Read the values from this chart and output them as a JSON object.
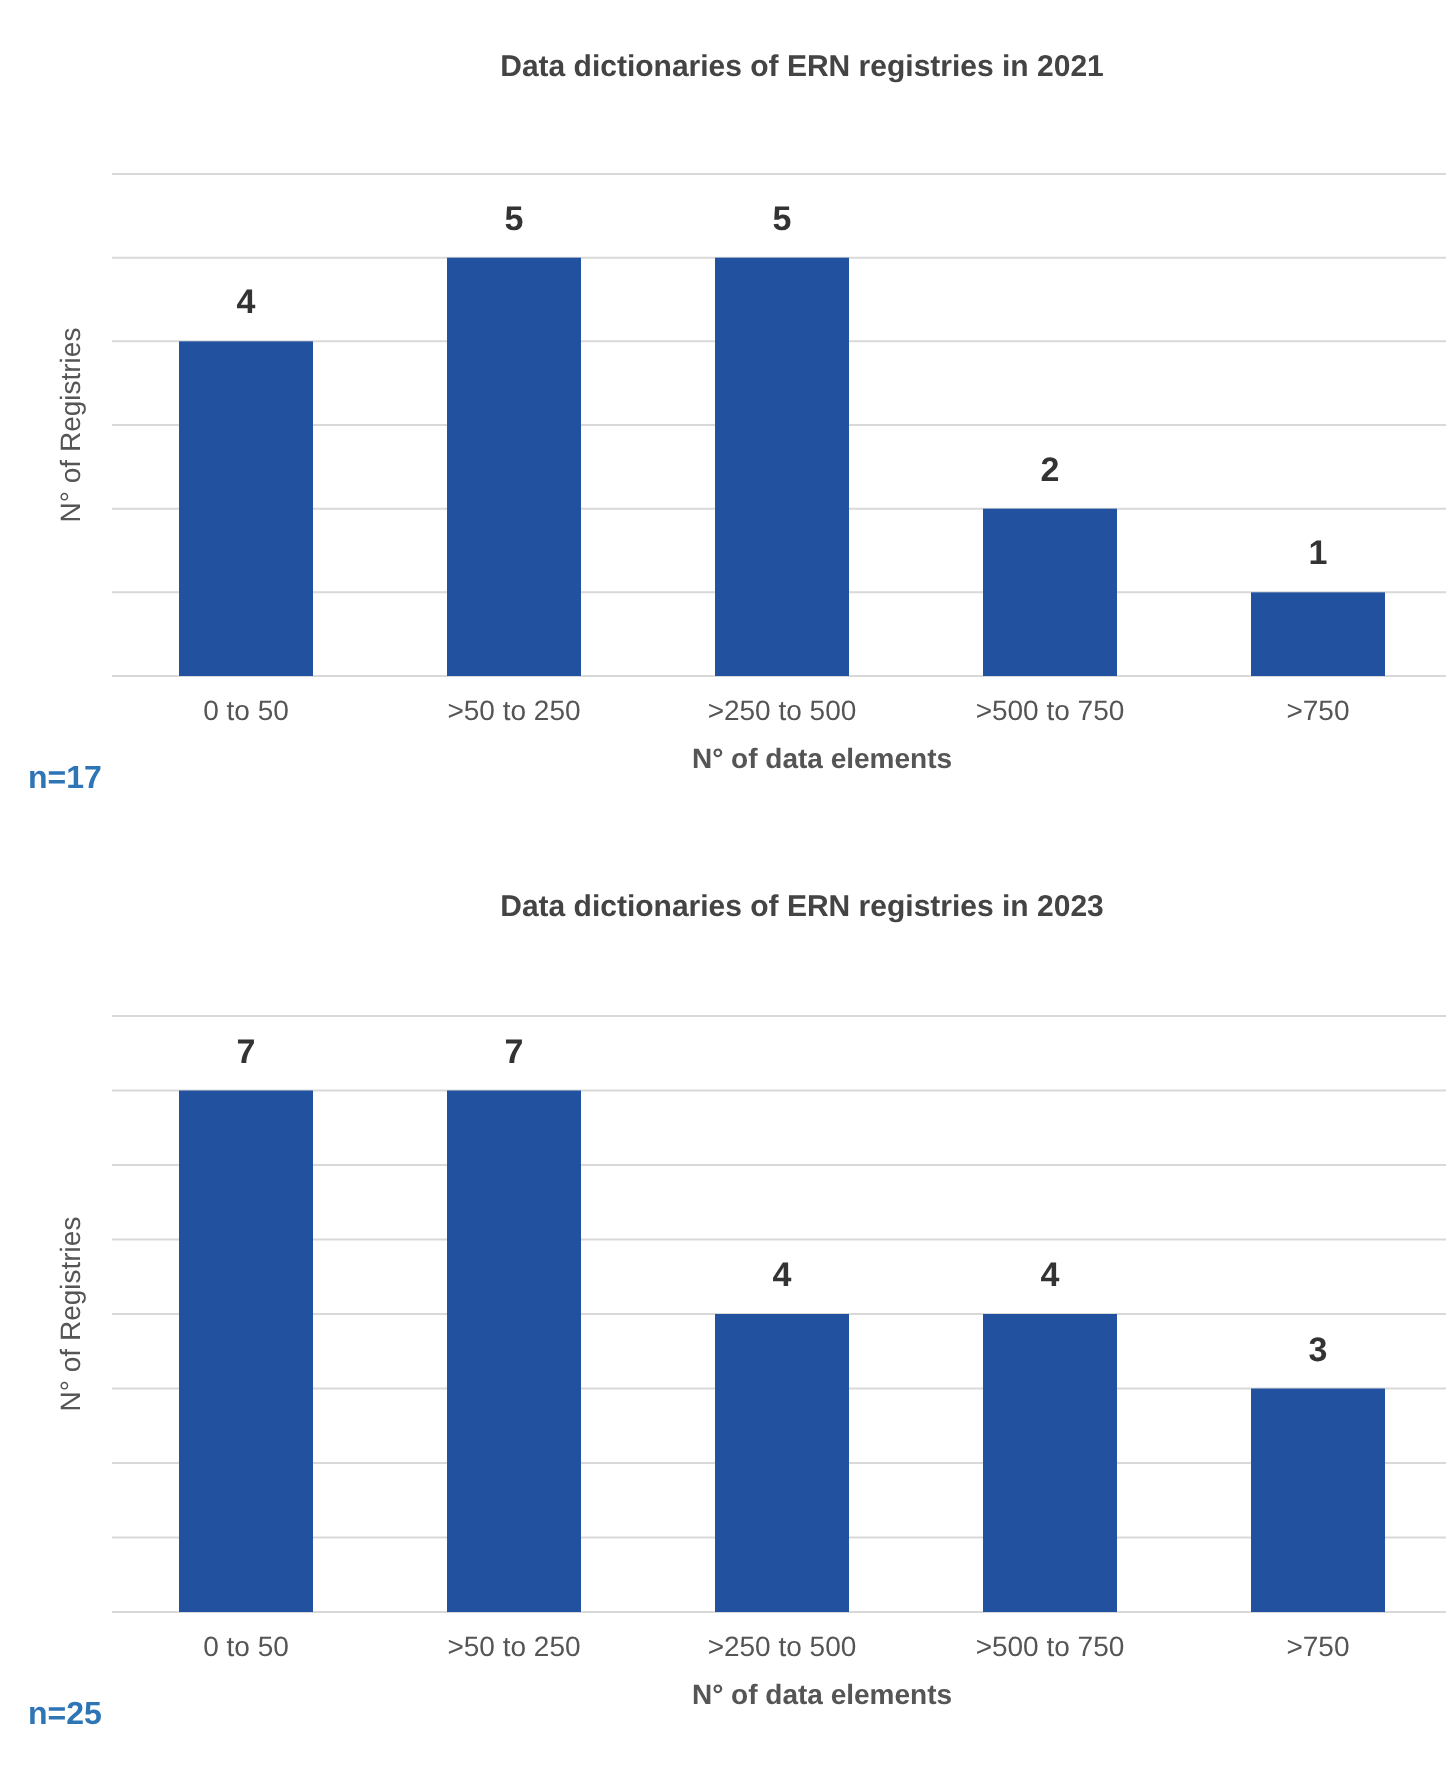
{
  "chart_data": [
    {
      "type": "bar",
      "title": "Data dictionaries of ERN registries in 2021",
      "xlabel": "N° of data elements",
      "ylabel": "N° of Registries",
      "categories": [
        "0  to 50",
        ">50 to 250",
        ">250 to 500",
        ">500 to 750",
        ">750"
      ],
      "values": [
        4,
        5,
        5,
        2,
        1
      ],
      "color": "#2251a0",
      "ylim": [
        0,
        6
      ],
      "yticks": [
        {
          "value": 0,
          "label": null
        },
        {
          "value": 1,
          "label": null
        },
        {
          "value": 2,
          "label": null
        },
        {
          "value": 3,
          "label": null
        },
        {
          "value": 4,
          "label": null
        },
        {
          "value": 5,
          "label": null
        },
        {
          "value": 6,
          "label": null
        }
      ],
      "grid": "y",
      "tick_labels": "x",
      "data_labels": true,
      "annotations": [
        "n=17"
      ]
    },
    {
      "type": "bar",
      "title": "Data dictionaries of ERN registries in 2023",
      "xlabel": "N° of data elements",
      "ylabel": "N° of Registries",
      "categories": [
        "0  to 50",
        ">50 to 250",
        ">250 to 500",
        ">500 to 750",
        ">750"
      ],
      "values": [
        7,
        7,
        4,
        4,
        3
      ],
      "color": "#2251a0",
      "ylim": [
        0,
        8
      ],
      "yticks": [
        {
          "value": 0,
          "label": null
        },
        {
          "value": 1,
          "label": null
        },
        {
          "value": 2,
          "label": null
        },
        {
          "value": 3,
          "label": null
        },
        {
          "value": 4,
          "label": null
        },
        {
          "value": 5,
          "label": null
        },
        {
          "value": 6,
          "label": null
        },
        {
          "value": 7,
          "label": null
        },
        {
          "value": 8,
          "label": null
        }
      ],
      "grid": "y",
      "tick_labels": "x",
      "data_labels": true,
      "annotations": [
        "n=25"
      ]
    }
  ]
}
